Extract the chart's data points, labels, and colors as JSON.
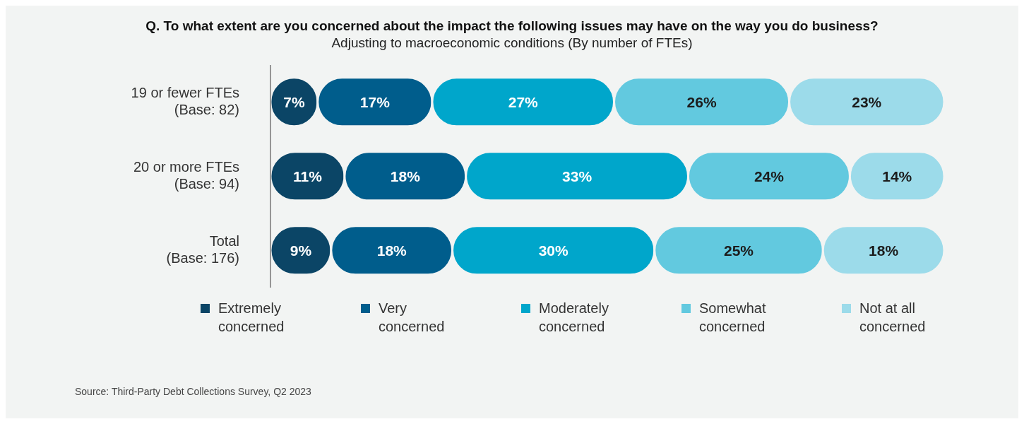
{
  "chart_data": {
    "type": "bar",
    "orientation": "horizontal",
    "stacked": true,
    "legend": "bottom",
    "grid": false,
    "title": "Q. To what extent are you concerned about the impact the following issues may have on the way you do business?",
    "subtitle": "Adjusting to macroeconomic conditions (By number of FTEs)",
    "categories": [
      "19 or fewer FTEs\n(Base: 82)",
      "20 or more FTEs\n(Base: 94)",
      "Total\n(Base: 176)"
    ],
    "series": [
      {
        "name": "Extremely concerned",
        "color": "#0b4566",
        "values": [
          7,
          11,
          9
        ],
        "value_labels": [
          "7%",
          "11%",
          "9%"
        ]
      },
      {
        "name": "Very concerned",
        "color": "#005d8c",
        "values": [
          17,
          18,
          18
        ],
        "value_labels": [
          "17%",
          "18%",
          "18%"
        ]
      },
      {
        "name": "Moderately concerned",
        "color": "#00a6cb",
        "values": [
          27,
          33,
          30
        ],
        "value_labels": [
          "27%",
          "33%",
          "30%"
        ]
      },
      {
        "name": "Somewhat concerned",
        "color": "#62c9df",
        "values": [
          26,
          24,
          25
        ],
        "value_labels": [
          "26%",
          "24%",
          "25%"
        ]
      },
      {
        "name": "Not at all concerned",
        "color": "#9cdbea",
        "values": [
          23,
          14,
          18
        ],
        "value_labels": [
          "23%",
          "14%",
          "18%"
        ]
      }
    ],
    "annotations": [
      "Source: Third-Party Debt Collections Survey, Q2 2023"
    ]
  }
}
